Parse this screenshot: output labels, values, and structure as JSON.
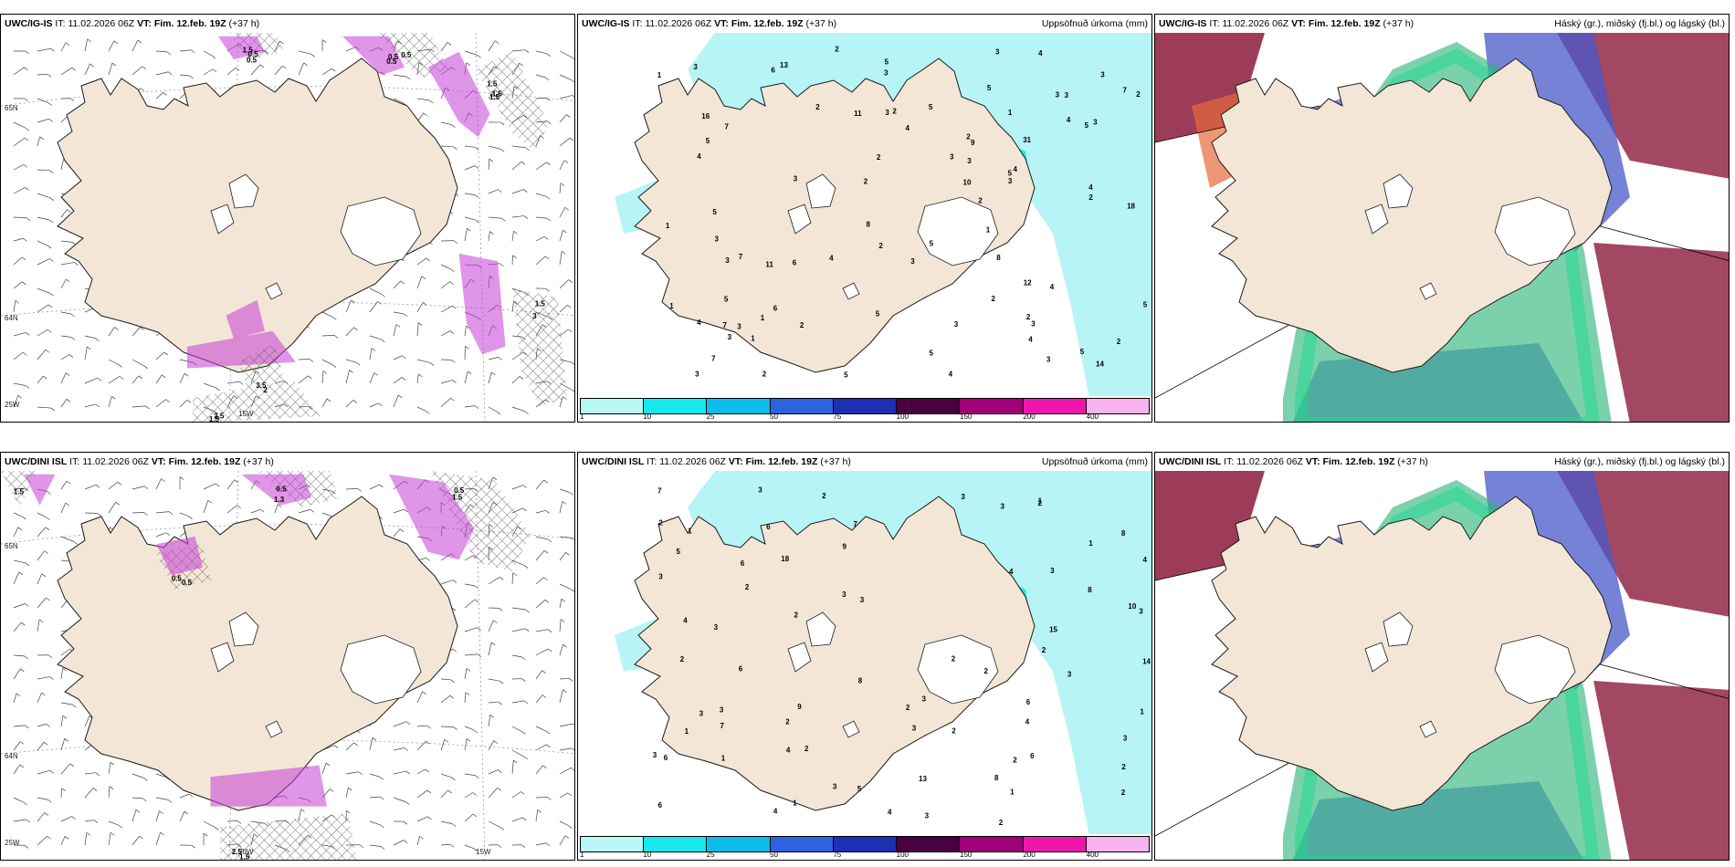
{
  "panels": [
    {
      "model": "UWC/IG-IS",
      "it_label": "IT:",
      "it": "11.02.2026 06Z",
      "vt_label": "VT:",
      "vt": "Fim. 12.feb. 19Z",
      "lead": "(+37 h)",
      "product": "",
      "kind": "wind",
      "axis": [
        "65N",
        "64N",
        "25W",
        "15W"
      ]
    },
    {
      "model": "UWC/IG-IS",
      "it_label": "IT:",
      "it": "11.02.2026 06Z",
      "vt_label": "VT:",
      "vt": "Fim. 12.feb. 19Z",
      "lead": "(+37 h)",
      "product": "Uppsöfnuð úrkoma (mm)",
      "kind": "precip",
      "values": [
        "2",
        "4",
        "3",
        "1",
        "3",
        "1",
        "3",
        "5",
        "2",
        "2",
        "4",
        "5",
        "3",
        "3",
        "5",
        "5",
        "4",
        "1",
        "3",
        "1",
        "5",
        "4",
        "3",
        "4",
        "5",
        "2",
        "3",
        "2",
        "2",
        "4",
        "3",
        "3",
        "1",
        "2",
        "5",
        "2",
        "3",
        "10",
        "11",
        "11",
        "8",
        "7",
        "8",
        "9",
        "5",
        "5",
        "4",
        "3",
        "5",
        "4",
        "7",
        "5",
        "16",
        "3",
        "4",
        "14",
        "13",
        "12",
        "6",
        "7",
        "5",
        "5",
        "3",
        "3",
        "3",
        "3",
        "2",
        "3",
        "2",
        "6",
        "2",
        "3",
        "6",
        "3",
        "7",
        "4",
        "2",
        "1",
        "1",
        "18",
        "2",
        "4",
        "5",
        "1",
        "7",
        "2",
        "2",
        "3",
        "3"
      ]
    },
    {
      "model": "UWC/IG-IS",
      "it_label": "IT:",
      "it": "11.02.2026 06Z",
      "vt_label": "VT:",
      "vt": "Fim. 12.feb. 19Z",
      "lead": "(+37 h)",
      "product": "Háský (gr.), miðský (fj.bl.) og lágský (bl.)",
      "kind": "cloud"
    },
    {
      "model": "UWC/DINI ISL",
      "it_label": "IT:",
      "it": "11.02.2026 06Z",
      "vt_label": "VT:",
      "vt": "Fim. 12.feb. 19Z",
      "lead": "(+37 h)",
      "product": "",
      "kind": "wind",
      "axis": [
        "65N",
        "64N",
        "25W",
        "20W",
        "15W"
      ]
    },
    {
      "model": "UWC/DINI ISL",
      "it_label": "IT:",
      "it": "11.02.2026 06Z",
      "vt_label": "VT:",
      "vt": "Fim. 12.feb. 19Z",
      "lead": "(+37 h)",
      "product": "Uppsöfnuð úrkoma (mm)",
      "kind": "precip",
      "values": [
        "3",
        "4",
        "7",
        "2",
        "3",
        "2",
        "4",
        "3",
        "3",
        "8",
        "2",
        "3",
        "6",
        "6",
        "5",
        "3",
        "2",
        "1",
        "6",
        "3",
        "6",
        "3",
        "3",
        "4",
        "2",
        "1",
        "4",
        "1",
        "10",
        "7",
        "7",
        "8",
        "14",
        "18",
        "5",
        "6",
        "8",
        "9",
        "2",
        "2",
        "9",
        "3",
        "6",
        "6",
        "4",
        "8",
        "13",
        "15",
        "4",
        "2",
        "2",
        "2",
        "3",
        "2",
        "3",
        "2",
        "2",
        "4",
        "1",
        "2",
        "3",
        "3",
        "3",
        "1",
        "1",
        "1",
        "3",
        "2",
        "1",
        "2",
        "2",
        "3",
        "3"
      ]
    },
    {
      "model": "UWC/DINI ISL",
      "it_label": "IT:",
      "it": "11.02.2026 06Z",
      "vt_label": "VT:",
      "vt": "Fim. 12.feb. 19Z",
      "lead": "(+37 h)",
      "product": "Háský (gr.), miðský (fj.bl.) og lágský (bl.)",
      "kind": "cloud"
    }
  ],
  "wind_labels_top": [
    "0.5",
    "0.5",
    "1.5",
    "3",
    "1.5",
    "2",
    "1.5",
    "0.5",
    "1.5",
    "1.5",
    "2.5",
    "3.5",
    "0.5",
    "0.5",
    "1.5"
  ],
  "wind_labels_bot": [
    "0.5",
    "1.5",
    "0.5",
    "2.5",
    "1.5",
    "1.3",
    "0.5",
    "0.5",
    "1.5"
  ],
  "precip_legend": {
    "ticks": [
      "1",
      "10",
      "25",
      "50",
      "75",
      "100",
      "150",
      "200",
      "400"
    ],
    "colors": [
      "#b7f7f5",
      "#16e8ee",
      "#0bbde8",
      "#2e63e0",
      "#1e2fb4",
      "#4a0040",
      "#a00078",
      "#ef16ad",
      "#f6b3ef"
    ]
  },
  "colors": {
    "land": "#f3e6d6",
    "precip_light": "#b7f4f5",
    "precip_mid": "#16e8ee",
    "wind_mag": "#c43ed6",
    "cloud_high": "#2bb57a",
    "cloud_mid": "#4858c8",
    "cloud_low": "#8b1a3c",
    "coast": "#1a1a1a"
  }
}
